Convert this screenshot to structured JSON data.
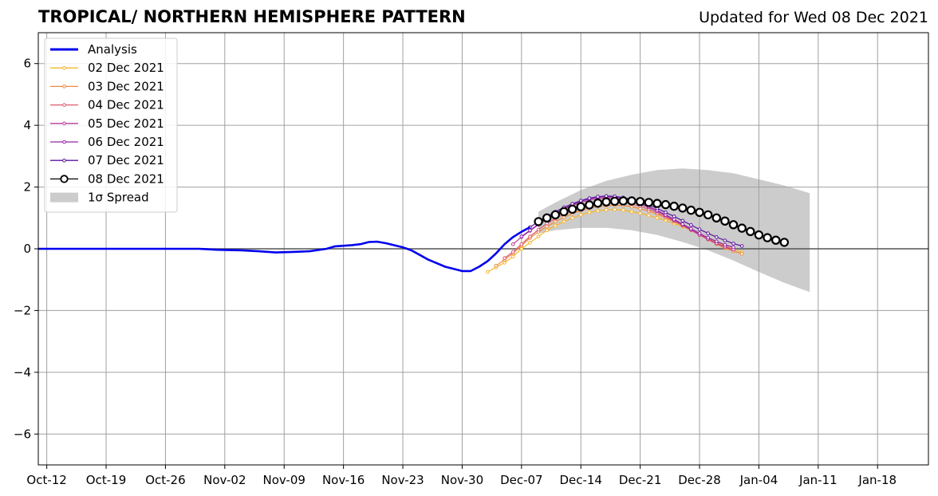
{
  "chart_data": {
    "type": "line",
    "title": "TROPICAL/ NORTHERN HEMISPHERE PATTERN",
    "subtitle": "Updated for Wed 08 Dec 2021",
    "xlabel": "",
    "ylabel": "",
    "x_range": [
      "2021-10-11",
      "2022-01-24"
    ],
    "ylim": [
      -7,
      7
    ],
    "yticks": [
      -6,
      -4,
      -2,
      0,
      2,
      4,
      6
    ],
    "ytick_labels": [
      "−6",
      "−4",
      "−2",
      "0",
      "2",
      "4",
      "6"
    ],
    "xticks": [
      "2021-10-12",
      "2021-10-19",
      "2021-10-26",
      "2021-11-02",
      "2021-11-09",
      "2021-11-16",
      "2021-11-23",
      "2021-11-30",
      "2021-12-07",
      "2021-12-14",
      "2021-12-21",
      "2021-12-28",
      "2022-01-04",
      "2022-01-11",
      "2022-01-18"
    ],
    "xtick_labels": [
      "Oct-12",
      "Oct-19",
      "Oct-26",
      "Nov-02",
      "Nov-09",
      "Nov-16",
      "Nov-23",
      "Nov-30",
      "Dec-07",
      "Dec-14",
      "Dec-21",
      "Dec-28",
      "Jan-04",
      "Jan-11",
      "Jan-18"
    ],
    "grid": true,
    "legend_position": "top-left",
    "analysis": {
      "name": "Analysis",
      "color": "#0000ee",
      "points": [
        [
          "2021-10-11",
          0.0
        ],
        [
          "2021-10-20",
          0.0
        ],
        [
          "2021-10-30",
          0.0
        ],
        [
          "2021-11-01",
          -0.03
        ],
        [
          "2021-11-04",
          -0.05
        ],
        [
          "2021-11-06",
          -0.08
        ],
        [
          "2021-11-08",
          -0.12
        ],
        [
          "2021-11-10",
          -0.1
        ],
        [
          "2021-11-12",
          -0.08
        ],
        [
          "2021-11-14",
          0.0
        ],
        [
          "2021-11-15",
          0.08
        ],
        [
          "2021-11-17",
          0.12
        ],
        [
          "2021-11-18",
          0.15
        ],
        [
          "2021-11-19",
          0.22
        ],
        [
          "2021-11-20",
          0.23
        ],
        [
          "2021-11-21",
          0.18
        ],
        [
          "2021-11-23",
          0.05
        ],
        [
          "2021-11-24",
          -0.05
        ],
        [
          "2021-11-25",
          -0.2
        ],
        [
          "2021-11-26",
          -0.35
        ],
        [
          "2021-11-28",
          -0.58
        ],
        [
          "2021-11-30",
          -0.72
        ],
        [
          "2021-12-01",
          -0.72
        ],
        [
          "2021-12-02",
          -0.58
        ],
        [
          "2021-12-03",
          -0.4
        ],
        [
          "2021-12-04",
          -0.15
        ],
        [
          "2021-12-05",
          0.15
        ],
        [
          "2021-12-06",
          0.38
        ],
        [
          "2021-12-07",
          0.55
        ],
        [
          "2021-12-08",
          0.7
        ]
      ]
    },
    "forecasts": [
      {
        "name": "02 Dec 2021",
        "color": "#f5b62a",
        "start": "2021-12-03",
        "values": [
          -0.75,
          -0.6,
          -0.45,
          -0.25,
          0.0,
          0.2,
          0.4,
          0.6,
          0.75,
          0.88,
          1.0,
          1.1,
          1.18,
          1.23,
          1.26,
          1.27,
          1.25,
          1.2,
          1.15,
          1.08,
          1.0,
          0.92,
          0.82,
          0.72,
          0.6,
          0.48,
          0.35,
          0.22,
          0.1,
          -0.02,
          -0.12
        ]
      },
      {
        "name": "03 Dec 2021",
        "color": "#ef8a3c",
        "start": "2021-12-04",
        "values": [
          -0.55,
          -0.35,
          -0.15,
          0.1,
          0.35,
          0.55,
          0.72,
          0.88,
          1.02,
          1.14,
          1.24,
          1.32,
          1.37,
          1.4,
          1.41,
          1.4,
          1.37,
          1.3,
          1.22,
          1.12,
          1.0,
          0.88,
          0.75,
          0.6,
          0.45,
          0.3,
          0.15,
          0.02,
          -0.08,
          -0.16
        ]
      },
      {
        "name": "04 Dec 2021",
        "color": "#dd5a70",
        "start": "2021-12-05",
        "values": [
          -0.3,
          -0.1,
          0.15,
          0.4,
          0.62,
          0.82,
          0.98,
          1.12,
          1.25,
          1.35,
          1.43,
          1.49,
          1.52,
          1.52,
          1.5,
          1.45,
          1.38,
          1.28,
          1.17,
          1.04,
          0.9,
          0.75,
          0.6,
          0.45,
          0.3,
          0.17,
          0.05,
          -0.03
        ]
      },
      {
        "name": "05 Dec 2021",
        "color": "#bb3a96",
        "start": "2021-12-06",
        "values": [
          0.15,
          0.38,
          0.58,
          0.78,
          0.95,
          1.12,
          1.27,
          1.4,
          1.5,
          1.58,
          1.63,
          1.65,
          1.64,
          1.6,
          1.54,
          1.45,
          1.34,
          1.22,
          1.08,
          0.93,
          0.78,
          0.62,
          0.46,
          0.32,
          0.18,
          0.07,
          -0.02
        ]
      },
      {
        "name": "06 Dec 2021",
        "color": "#9424a8",
        "start": "2021-12-07",
        "values": [
          0.4,
          0.6,
          0.8,
          0.98,
          1.15,
          1.3,
          1.43,
          1.54,
          1.62,
          1.67,
          1.69,
          1.68,
          1.64,
          1.57,
          1.48,
          1.37,
          1.24,
          1.1,
          0.95,
          0.8,
          0.65,
          0.5,
          0.36,
          0.24,
          0.13,
          0.05
        ]
      },
      {
        "name": "07 Dec 2021",
        "color": "#5a169e",
        "start": "2021-12-08",
        "values": [
          0.7,
          0.88,
          1.05,
          1.2,
          1.34,
          1.46,
          1.56,
          1.64,
          1.69,
          1.71,
          1.7,
          1.66,
          1.6,
          1.52,
          1.42,
          1.31,
          1.18,
          1.05,
          0.91,
          0.77,
          0.63,
          0.5,
          0.38,
          0.27,
          0.17,
          0.09
        ]
      },
      {
        "name": "08 Dec 2021",
        "color": "#000000",
        "start": "2021-12-09",
        "values": [
          0.88,
          1.0,
          1.1,
          1.2,
          1.28,
          1.36,
          1.42,
          1.48,
          1.52,
          1.54,
          1.55,
          1.55,
          1.53,
          1.5,
          1.47,
          1.43,
          1.38,
          1.32,
          1.25,
          1.18,
          1.1,
          1.0,
          0.9,
          0.78,
          0.67,
          0.56,
          0.45,
          0.36,
          0.28,
          0.21
        ]
      }
    ],
    "spread": {
      "name": "1σ Spread",
      "color": "#cccccc",
      "upper": [
        [
          "2021-12-09",
          1.2
        ],
        [
          "2021-12-11",
          1.5
        ],
        [
          "2021-12-14",
          1.9
        ],
        [
          "2021-12-17",
          2.2
        ],
        [
          "2021-12-20",
          2.4
        ],
        [
          "2021-12-23",
          2.55
        ],
        [
          "2021-12-26",
          2.6
        ],
        [
          "2021-12-29",
          2.55
        ],
        [
          "2022-01-01",
          2.45
        ],
        [
          "2022-01-04",
          2.25
        ],
        [
          "2022-01-07",
          2.05
        ],
        [
          "2022-01-10",
          1.8
        ]
      ],
      "lower": [
        [
          "2021-12-09",
          0.5
        ],
        [
          "2021-12-11",
          0.6
        ],
        [
          "2021-12-14",
          0.68
        ],
        [
          "2021-12-17",
          0.68
        ],
        [
          "2021-12-20",
          0.6
        ],
        [
          "2021-12-23",
          0.45
        ],
        [
          "2021-12-26",
          0.22
        ],
        [
          "2021-12-29",
          -0.05
        ],
        [
          "2022-01-01",
          -0.38
        ],
        [
          "2022-01-04",
          -0.75
        ],
        [
          "2022-01-07",
          -1.1
        ],
        [
          "2022-01-10",
          -1.4
        ]
      ]
    },
    "legend": [
      {
        "label": "Analysis",
        "color": "#0000ee",
        "kind": "thick-line"
      },
      {
        "label": "02 Dec 2021",
        "color": "#f5b62a",
        "kind": "line-dot"
      },
      {
        "label": "03 Dec 2021",
        "color": "#ef8a3c",
        "kind": "line-dot"
      },
      {
        "label": "04 Dec 2021",
        "color": "#dd5a70",
        "kind": "line-dot"
      },
      {
        "label": "05 Dec 2021",
        "color": "#bb3a96",
        "kind": "line-dot"
      },
      {
        "label": "06 Dec 2021",
        "color": "#9424a8",
        "kind": "line-dot"
      },
      {
        "label": "07 Dec 2021",
        "color": "#5a169e",
        "kind": "line-dot"
      },
      {
        "label": "08 Dec 2021",
        "color": "#000000",
        "kind": "line-circle"
      },
      {
        "label": "1σ Spread",
        "color": "#cccccc",
        "kind": "patch"
      }
    ]
  }
}
